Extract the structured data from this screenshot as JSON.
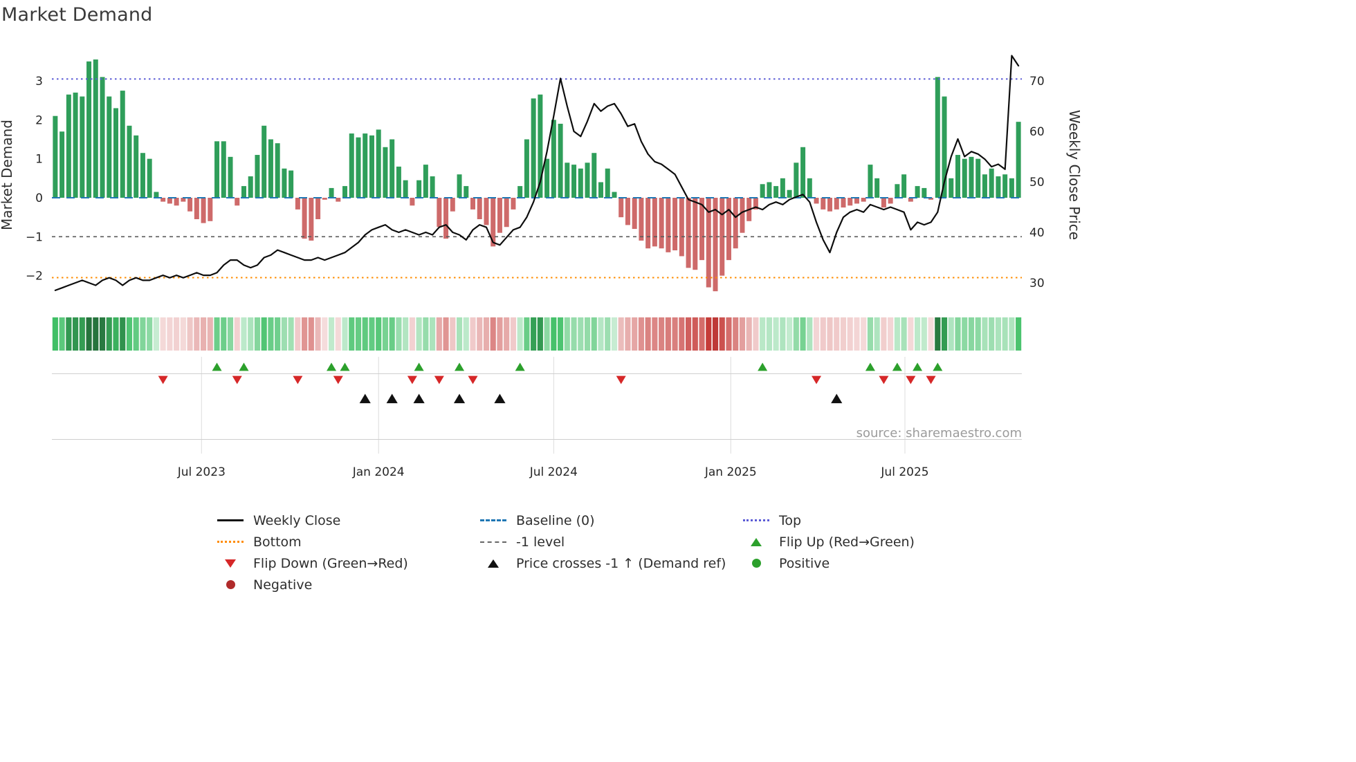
{
  "title": "Market Demand",
  "source": "source: sharemaestro.com",
  "axes": {
    "left_label": "Market Demand",
    "right_label": "Weekly Close Price",
    "left_ticks": [
      {
        "label": "3",
        "value": 3
      },
      {
        "label": "2",
        "value": 2
      },
      {
        "label": "1",
        "value": 1
      },
      {
        "label": "0",
        "value": 0
      },
      {
        "label": "−1",
        "value": -1
      },
      {
        "label": "−2",
        "value": -2
      }
    ],
    "right_ticks": [
      {
        "label": "70",
        "value": 70
      },
      {
        "label": "60",
        "value": 60
      },
      {
        "label": "50",
        "value": 50
      },
      {
        "label": "40",
        "value": 40
      },
      {
        "label": "30",
        "value": 30
      }
    ],
    "x_ticks": [
      {
        "label": "Jul 2023",
        "date": "2023-07-01"
      },
      {
        "label": "Jan 2024",
        "date": "2024-01-01"
      },
      {
        "label": "Jul 2024",
        "date": "2024-07-01"
      },
      {
        "label": "Jan 2025",
        "date": "2025-01-01"
      },
      {
        "label": "Jul 2025",
        "date": "2025-07-01"
      }
    ]
  },
  "colors": {
    "bar_positive": "#2f9e5a",
    "bar_negative": "#ce6a6a",
    "price_line": "#0d0d0d",
    "baseline": "#1f77b4",
    "top_line": "#5b5bd6",
    "bottom_line": "#ff8c00",
    "minus1_line": "#5a5a5a",
    "flip_up": "#2ca02c",
    "flip_down": "#d62728",
    "price_cross": "#111111",
    "positive_dot": "#2ca02c",
    "negative_dot": "#b02a2a",
    "grid": "#dcdcdc",
    "panel_line": "#cfcfcf"
  },
  "legend": {
    "columns": [
      [
        {
          "label": "Weekly Close",
          "swatch": "line-solid",
          "color": "#111111"
        },
        {
          "label": "Bottom",
          "swatch": "line-dotted",
          "color": "#ff8c00"
        },
        {
          "label": "Flip Down (Green→Red)",
          "swatch": "triangle-down",
          "color": "#d62728"
        },
        {
          "label": "Negative",
          "swatch": "dot",
          "color": "#b02a2a"
        }
      ],
      [
        {
          "label": "Baseline (0)",
          "swatch": "line-dashed",
          "color": "#1f77b4"
        },
        {
          "label": "-1 level",
          "swatch": "line-dashed-thin",
          "color": "#666666"
        },
        {
          "label": "Price crosses -1 ↑ (Demand ref)",
          "swatch": "triangle-up",
          "color": "#111111"
        }
      ],
      [
        {
          "label": "Top",
          "swatch": "line-dotted",
          "color": "#5b5bd6"
        },
        {
          "label": "Flip Up (Red→Green)",
          "swatch": "triangle-up",
          "color": "#2ca02c"
        },
        {
          "label": "Positive",
          "swatch": "dot",
          "color": "#2ca02c"
        }
      ]
    ]
  },
  "chart_data": {
    "type": "combo",
    "title": "Market Demand",
    "xlabel": "",
    "ylabel_left": "Market Demand",
    "ylabel_right": "Weekly Close Price",
    "ylim_left": [
      -2.8,
      3.95
    ],
    "ylim_right": [
      25,
      77.5
    ],
    "legend_position": "bottom",
    "grid": false,
    "reference_lines": {
      "top": 3.05,
      "baseline": 0,
      "minus1": -1,
      "bottom": -2.05
    },
    "x": [
      "2023-01-30",
      "2023-02-06",
      "2023-02-13",
      "2023-02-20",
      "2023-02-27",
      "2023-03-06",
      "2023-03-13",
      "2023-03-20",
      "2023-03-27",
      "2023-04-03",
      "2023-04-10",
      "2023-04-17",
      "2023-04-24",
      "2023-05-01",
      "2023-05-08",
      "2023-05-15",
      "2023-05-22",
      "2023-05-29",
      "2023-06-05",
      "2023-06-12",
      "2023-06-19",
      "2023-06-26",
      "2023-07-03",
      "2023-07-10",
      "2023-07-17",
      "2023-07-24",
      "2023-07-31",
      "2023-08-07",
      "2023-08-14",
      "2023-08-21",
      "2023-08-28",
      "2023-09-04",
      "2023-09-11",
      "2023-09-18",
      "2023-09-25",
      "2023-10-02",
      "2023-10-09",
      "2023-10-16",
      "2023-10-23",
      "2023-10-30",
      "2023-11-06",
      "2023-11-13",
      "2023-11-20",
      "2023-11-27",
      "2023-12-04",
      "2023-12-11",
      "2023-12-18",
      "2023-12-25",
      "2024-01-01",
      "2024-01-08",
      "2024-01-15",
      "2024-01-22",
      "2024-01-29",
      "2024-02-05",
      "2024-02-12",
      "2024-02-19",
      "2024-02-26",
      "2024-03-04",
      "2024-03-11",
      "2024-03-18",
      "2024-03-25",
      "2024-04-01",
      "2024-04-08",
      "2024-04-15",
      "2024-04-22",
      "2024-04-29",
      "2024-05-06",
      "2024-05-13",
      "2024-05-20",
      "2024-05-27",
      "2024-06-03",
      "2024-06-10",
      "2024-06-17",
      "2024-06-24",
      "2024-07-01",
      "2024-07-08",
      "2024-07-15",
      "2024-07-22",
      "2024-07-29",
      "2024-08-05",
      "2024-08-12",
      "2024-08-19",
      "2024-08-26",
      "2024-09-02",
      "2024-09-09",
      "2024-09-16",
      "2024-09-23",
      "2024-09-30",
      "2024-10-07",
      "2024-10-14",
      "2024-10-21",
      "2024-10-28",
      "2024-11-04",
      "2024-11-11",
      "2024-11-18",
      "2024-11-25",
      "2024-12-02",
      "2024-12-09",
      "2024-12-16",
      "2024-12-23",
      "2024-12-30",
      "2025-01-06",
      "2025-01-13",
      "2025-01-20",
      "2025-01-27",
      "2025-02-03",
      "2025-02-10",
      "2025-02-17",
      "2025-02-24",
      "2025-03-03",
      "2025-03-10",
      "2025-03-17",
      "2025-03-24",
      "2025-03-31",
      "2025-04-07",
      "2025-04-14",
      "2025-04-21",
      "2025-04-28",
      "2025-05-05",
      "2025-05-12",
      "2025-05-19",
      "2025-05-26",
      "2025-06-02",
      "2025-06-09",
      "2025-06-16",
      "2025-06-23",
      "2025-06-30",
      "2025-07-07",
      "2025-07-14",
      "2025-07-21",
      "2025-07-28",
      "2025-08-04",
      "2025-08-11",
      "2025-08-18",
      "2025-08-25",
      "2025-09-01",
      "2025-09-08",
      "2025-09-15",
      "2025-09-22",
      "2025-09-29",
      "2025-10-06",
      "2025-10-13",
      "2025-10-20",
      "2025-10-27"
    ],
    "series": [
      {
        "name": "Market Demand",
        "type": "bar",
        "axis": "left",
        "values": [
          2.1,
          1.7,
          2.65,
          2.7,
          2.6,
          3.5,
          3.55,
          3.1,
          2.6,
          2.3,
          2.75,
          1.85,
          1.6,
          1.15,
          1.0,
          0.15,
          -0.1,
          -0.15,
          -0.2,
          -0.1,
          -0.35,
          -0.55,
          -0.65,
          -0.6,
          1.45,
          1.45,
          1.05,
          -0.2,
          0.3,
          0.55,
          1.1,
          1.85,
          1.5,
          1.4,
          0.75,
          0.7,
          -0.3,
          -1.05,
          -1.1,
          -0.55,
          -0.05,
          0.25,
          -0.1,
          0.3,
          1.65,
          1.55,
          1.65,
          1.6,
          1.75,
          1.3,
          1.5,
          0.8,
          0.45,
          -0.2,
          0.45,
          0.85,
          0.55,
          -0.75,
          -1.05,
          -0.35,
          0.6,
          0.3,
          -0.3,
          -0.55,
          -0.7,
          -1.25,
          -0.9,
          -0.75,
          -0.3,
          0.3,
          1.5,
          2.55,
          2.65,
          1.0,
          2.0,
          1.9,
          0.9,
          0.85,
          0.75,
          0.9,
          1.15,
          0.4,
          0.75,
          0.15,
          -0.5,
          -0.7,
          -0.8,
          -1.1,
          -1.3,
          -1.25,
          -1.3,
          -1.4,
          -1.35,
          -1.5,
          -1.8,
          -1.85,
          -1.6,
          -2.3,
          -2.4,
          -2.0,
          -1.6,
          -1.3,
          -0.9,
          -0.6,
          -0.3,
          0.35,
          0.4,
          0.3,
          0.5,
          0.2,
          0.9,
          1.3,
          0.5,
          -0.15,
          -0.3,
          -0.35,
          -0.3,
          -0.25,
          -0.2,
          -0.15,
          -0.1,
          0.85,
          0.5,
          -0.25,
          -0.15,
          0.35,
          0.6,
          -0.1,
          0.3,
          0.25,
          -0.05,
          3.1,
          2.6,
          0.5,
          1.1,
          1.0,
          1.05,
          1.0,
          0.6,
          0.75,
          0.55,
          0.6,
          0.5,
          1.95
        ]
      },
      {
        "name": "Weekly Close",
        "type": "line",
        "axis": "right",
        "values": [
          28.5,
          29,
          29.5,
          30,
          30.5,
          30,
          29.5,
          30.5,
          31,
          30.5,
          29.5,
          30.5,
          31,
          30.5,
          30.5,
          31,
          31.5,
          31,
          31.5,
          31,
          31.5,
          32,
          31.5,
          31.5,
          32,
          33.5,
          34.5,
          34.5,
          33.5,
          33,
          33.5,
          35,
          35.5,
          36.5,
          36,
          35.5,
          35,
          34.5,
          34.5,
          35,
          34.5,
          35,
          35.5,
          36,
          37,
          38,
          39.5,
          40.5,
          41,
          41.5,
          40.5,
          40,
          40.5,
          40,
          39.5,
          40,
          39.5,
          41,
          41.5,
          40,
          39.5,
          38.5,
          40.5,
          41.5,
          41,
          38,
          37.5,
          39,
          40.5,
          41,
          43,
          46,
          50,
          56,
          63,
          70.5,
          65,
          60,
          59,
          62,
          65.5,
          64,
          65,
          65.5,
          63.5,
          61,
          61.5,
          58,
          55.5,
          54,
          53.5,
          52.5,
          51.5,
          49,
          46.5,
          46,
          45.5,
          44,
          44.5,
          43.5,
          44.5,
          43,
          44,
          44.5,
          45,
          44.5,
          45.5,
          46,
          45.5,
          46.5,
          47,
          47.5,
          46,
          42,
          38.5,
          36,
          40,
          43,
          44,
          44.5,
          44,
          45.5,
          45,
          44.5,
          45,
          44.5,
          44,
          40.5,
          42,
          41.5,
          42,
          44,
          50,
          55,
          58.5,
          55,
          56,
          55.5,
          54.5,
          53,
          53.5,
          52.5,
          75,
          73
        ]
      }
    ],
    "events": {
      "flip_up_indices": [
        24,
        28,
        41,
        43,
        54,
        60,
        69,
        105,
        121,
        125,
        128,
        131
      ],
      "flip_down_indices": [
        16,
        27,
        36,
        42,
        53,
        57,
        62,
        84,
        113,
        123,
        127,
        130
      ],
      "price_cross_indices": [
        46,
        50,
        54,
        60,
        66,
        116
      ]
    },
    "heatmap": {
      "source": "demand_values",
      "description": "strip below main plot; green shades for positive demand, red shades for negative, intensity proportional to magnitude"
    }
  }
}
